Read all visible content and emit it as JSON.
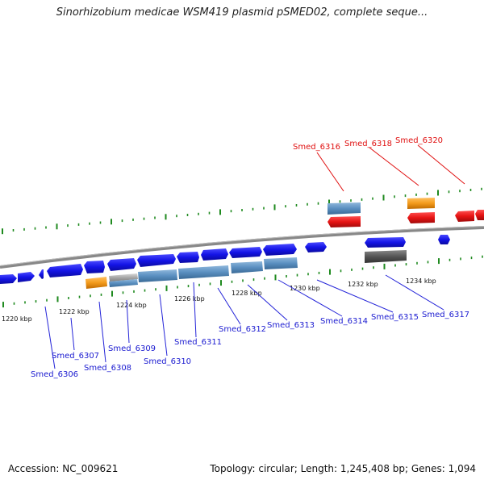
{
  "title": "Sinorhizobium medicae WSM419 plasmid pSMED02, complete seque...",
  "footer": {
    "accession": "Accession: NC_009621",
    "stats": "Topology: circular; Length: 1,245,408 bp; Genes: 1,094"
  },
  "colors": {
    "forward_gene": "#1414e6",
    "reverse_gene": "#e61414",
    "cds_match": "#5a8fc0",
    "orange_feature": "#f39b1c",
    "grey_feature": "#808080",
    "dark_feature": "#555555",
    "backbone": "#888888",
    "tick": "#1f8a1f",
    "label_forward": "#1a1ad0",
    "label_reverse": "#e01010"
  },
  "scale_labels": [
    "1220 kbp",
    "1222 kbp",
    "1224 kbp",
    "1226 kbp",
    "1228 kbp",
    "1230 kbp",
    "1232 kbp",
    "1234 kbp"
  ],
  "genes_forward": [
    "Smed_6306",
    "Smed_6307",
    "Smed_6308",
    "Smed_6309",
    "Smed_6310",
    "Smed_6311",
    "Smed_6312",
    "Smed_6313",
    "Smed_6314",
    "Smed_6315",
    "Smed_6317"
  ],
  "genes_reverse": [
    "Smed_6316",
    "Smed_6318",
    "Smed_6320"
  ]
}
